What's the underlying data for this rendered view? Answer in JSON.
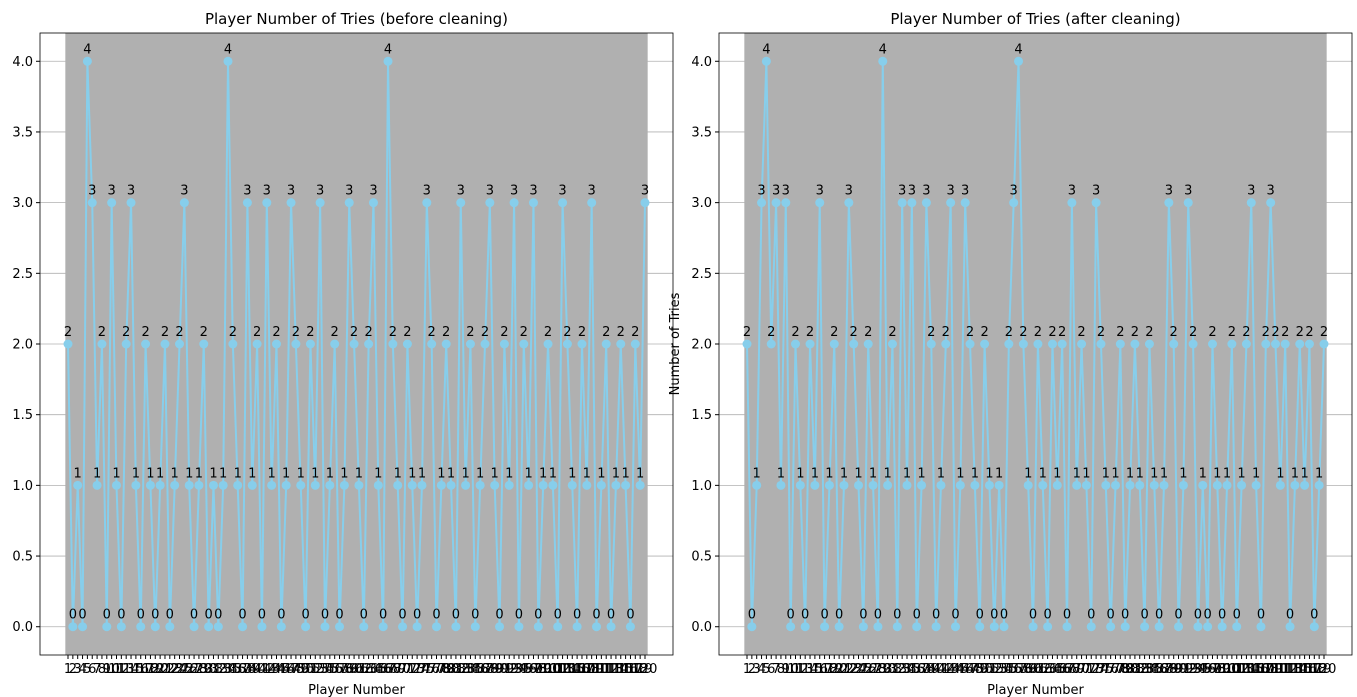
{
  "chart_data": [
    {
      "type": "line",
      "title": "Player Number of Tries (before cleaning)",
      "xlabel": "Player Number",
      "color": "#87ceeb",
      "grid": true,
      "categories": [
        "1",
        "2",
        "3",
        "4",
        "5",
        "6",
        "7",
        "8",
        "9",
        "10",
        "11",
        "12",
        "13",
        "14",
        "15",
        "16",
        "17",
        "18",
        "19",
        "20",
        "21",
        "22",
        "23",
        "24",
        "25",
        "26",
        "27",
        "28",
        "29",
        "30",
        "31",
        "32",
        "33",
        "34",
        "35",
        "36",
        "37",
        "38",
        "39",
        "40",
        "41",
        "42",
        "43",
        "44",
        "45",
        "46",
        "47",
        "48",
        "49",
        "50",
        "51",
        "52",
        "53",
        "54",
        "55",
        "56",
        "57",
        "58",
        "59",
        "60",
        "61",
        "62",
        "63",
        "64",
        "65",
        "66",
        "67",
        "68",
        "69",
        "70",
        "71",
        "72",
        "73",
        "74",
        "75",
        "76",
        "77",
        "78",
        "79",
        "80",
        "81",
        "82",
        "83",
        "84",
        "85",
        "86",
        "87",
        "88",
        "89",
        "90",
        "91",
        "92",
        "93",
        "94",
        "95",
        "96",
        "97",
        "98",
        "99",
        "100",
        "101",
        "102",
        "103",
        "104",
        "105",
        "106",
        "107",
        "108",
        "109",
        "110",
        "111",
        "112",
        "113",
        "114",
        "115",
        "116",
        "117",
        "118",
        "119",
        "120"
      ],
      "values": [
        2,
        0,
        1,
        0,
        4,
        3,
        1,
        2,
        0,
        3,
        1,
        0,
        2,
        3,
        1,
        0,
        2,
        1,
        0,
        1,
        2,
        0,
        1,
        2,
        3,
        1,
        0,
        1,
        2,
        0,
        1,
        0,
        1,
        4,
        2,
        1,
        0,
        3,
        1,
        2,
        0,
        3,
        1,
        2,
        0,
        1,
        3,
        2,
        1,
        0,
        2,
        1,
        3,
        0,
        1,
        2,
        0,
        1,
        3,
        2,
        1,
        0,
        2,
        3,
        1,
        0,
        4,
        2,
        1,
        0,
        2,
        1,
        0,
        1,
        3,
        2,
        0,
        1,
        2,
        1,
        0,
        3,
        1,
        2,
        0,
        1,
        2,
        3,
        1,
        0,
        2,
        1,
        3,
        0,
        2,
        1,
        3,
        0,
        1,
        2,
        1,
        0,
        3,
        2,
        1,
        0,
        2,
        1,
        3,
        0,
        1,
        2,
        0,
        1,
        2,
        1,
        0,
        2,
        1,
        3
      ],
      "ylim": [
        -0.2,
        4.2
      ],
      "yticks": [
        {
          "value": 0,
          "label": "0.0"
        },
        {
          "value": 0.5,
          "label": "0.5"
        },
        {
          "value": 1,
          "label": "1.0"
        },
        {
          "value": 1.5,
          "label": "1.5"
        },
        {
          "value": 2,
          "label": "2.0"
        },
        {
          "value": 2.5,
          "label": "2.5"
        },
        {
          "value": 3,
          "label": "3.0"
        },
        {
          "value": 3.5,
          "label": "3.5"
        },
        {
          "value": 4,
          "label": "4.0"
        }
      ]
    },
    {
      "type": "line",
      "title": "Player Number of Tries (after cleaning)",
      "xlabel": "Player Number",
      "ylabel": "Number of Tries",
      "color": "#87ceeb",
      "grid": true,
      "categories": [
        "1",
        "2",
        "3",
        "4",
        "5",
        "6",
        "7",
        "8",
        "9",
        "10",
        "11",
        "12",
        "13",
        "14",
        "15",
        "16",
        "17",
        "18",
        "19",
        "20",
        "21",
        "22",
        "23",
        "24",
        "25",
        "26",
        "27",
        "28",
        "29",
        "30",
        "31",
        "32",
        "33",
        "34",
        "35",
        "36",
        "37",
        "38",
        "39",
        "40",
        "41",
        "42",
        "43",
        "44",
        "45",
        "46",
        "47",
        "48",
        "49",
        "50",
        "51",
        "52",
        "53",
        "54",
        "55",
        "56",
        "57",
        "58",
        "59",
        "60",
        "61",
        "62",
        "63",
        "64",
        "65",
        "66",
        "67",
        "68",
        "69",
        "70",
        "71",
        "72",
        "73",
        "74",
        "75",
        "76",
        "77",
        "78",
        "79",
        "80",
        "81",
        "82",
        "83",
        "84",
        "85",
        "86",
        "87",
        "88",
        "89",
        "90",
        "91",
        "92",
        "93",
        "94",
        "95",
        "96",
        "97",
        "98",
        "99",
        "100",
        "101",
        "102",
        "103",
        "104",
        "105",
        "106",
        "107",
        "108",
        "109",
        "110",
        "111",
        "112",
        "113",
        "114",
        "115",
        "116",
        "117",
        "118",
        "119",
        "120"
      ],
      "values": [
        2,
        0,
        1,
        3,
        4,
        2,
        3,
        1,
        3,
        0,
        2,
        1,
        0,
        2,
        1,
        3,
        0,
        1,
        2,
        0,
        1,
        3,
        2,
        1,
        0,
        2,
        1,
        0,
        4,
        1,
        2,
        0,
        3,
        1,
        3,
        0,
        1,
        3,
        2,
        0,
        1,
        2,
        3,
        0,
        1,
        3,
        2,
        1,
        0,
        2,
        1,
        0,
        1,
        0,
        2,
        3,
        4,
        2,
        1,
        0,
        2,
        1,
        0,
        2,
        1,
        2,
        0,
        3,
        1,
        2,
        1,
        0,
        3,
        2,
        1,
        0,
        1,
        2,
        0,
        1,
        2,
        1,
        0,
        2,
        1,
        0,
        1,
        3,
        2,
        0,
        1,
        3,
        2,
        0,
        1,
        0,
        2,
        1,
        0,
        1,
        2,
        0,
        1,
        2,
        3,
        1,
        0,
        2,
        3,
        2,
        1,
        2,
        0,
        1,
        2,
        1,
        2,
        0,
        1,
        2
      ],
      "ylim": [
        -0.2,
        4.2
      ],
      "yticks": [
        {
          "value": 0,
          "label": "0.0"
        },
        {
          "value": 0.5,
          "label": "0.5"
        },
        {
          "value": 1,
          "label": "1.0"
        },
        {
          "value": 1.5,
          "label": "1.5"
        },
        {
          "value": 2,
          "label": "2.0"
        },
        {
          "value": 2.5,
          "label": "2.5"
        },
        {
          "value": 3,
          "label": "3.0"
        },
        {
          "value": 3.5,
          "label": "3.5"
        },
        {
          "value": 4,
          "label": "4.0"
        }
      ]
    }
  ]
}
